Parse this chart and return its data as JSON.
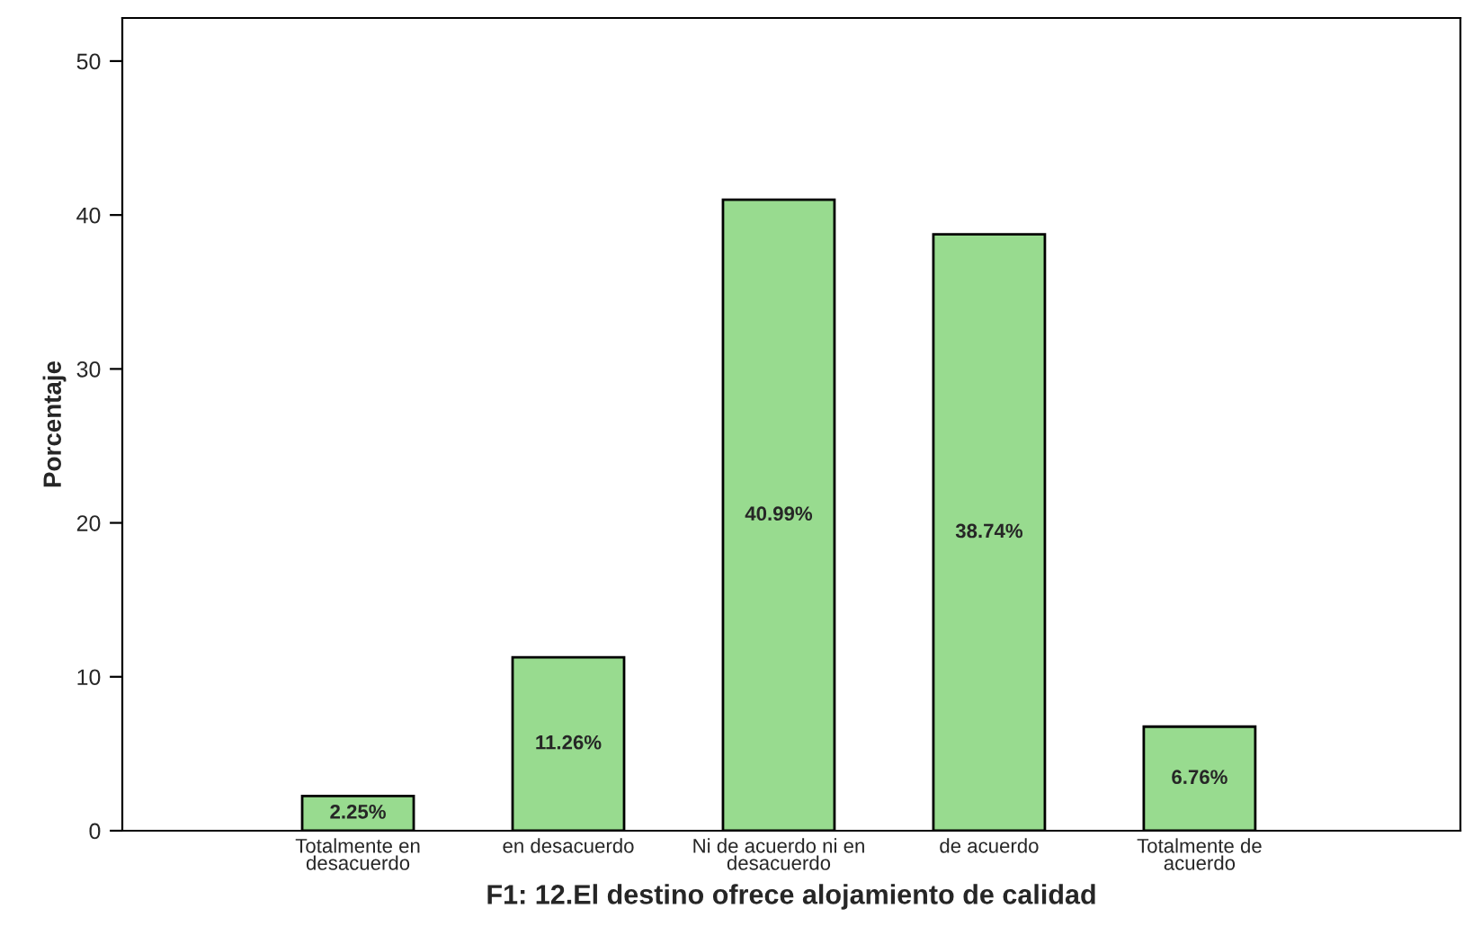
{
  "chart_data": {
    "type": "bar",
    "xlabel": "F1: 12.El destino ofrece alojamiento de calidad",
    "ylabel": "Porcentaje",
    "categories": [
      "Totalmente en\ndesacuerdo",
      "en desacuerdo",
      "Ni de acuerdo ni en\ndesacuerdo",
      "de acuerdo",
      "Totalmente de\nacuerdo"
    ],
    "values": [
      2.25,
      11.26,
      40.99,
      38.74,
      6.76
    ],
    "value_labels": [
      "2.25%",
      "11.26%",
      "40.99%",
      "38.74%",
      "6.76%"
    ],
    "color": "#98db8f",
    "ylim": [
      0,
      52.8
    ],
    "yticks": [
      0,
      10,
      20,
      30,
      40,
      50
    ],
    "grid": false,
    "legend": false
  }
}
